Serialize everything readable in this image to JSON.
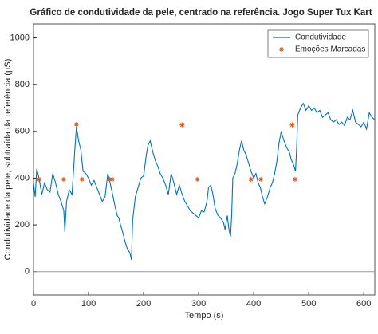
{
  "chart_data": {
    "type": "line",
    "title": "Gráfico de condutividade da pele, centrado na referência. Jogo Super Tux Kart",
    "x_label": "Tempo (s)",
    "y_label": "Condutividade da pele, subtraída da referência (µS)",
    "xlim": [
      0,
      620
    ],
    "xticks": [
      0,
      100,
      200,
      300,
      400,
      500,
      600
    ],
    "ylim": [
      -100,
      1060
    ],
    "yticks": [
      0,
      200,
      400,
      600,
      800,
      1000
    ],
    "reference_line": 0,
    "legend": "top-right",
    "series": [
      {
        "name": "Condutividade",
        "color": "#0072bd",
        "type": "line",
        "x": [
          0,
          3,
          6,
          10,
          15,
          20,
          25,
          30,
          35,
          40,
          45,
          50,
          55,
          57,
          60,
          65,
          70,
          75,
          78,
          82,
          86,
          90,
          95,
          100,
          105,
          110,
          115,
          120,
          125,
          130,
          135,
          138,
          142,
          148,
          152,
          155,
          158,
          162,
          166,
          170,
          175,
          178,
          180,
          185,
          190,
          195,
          200,
          205,
          208,
          212,
          218,
          222,
          226,
          230,
          235,
          240,
          245,
          250,
          255,
          260,
          265,
          270,
          275,
          280,
          285,
          290,
          295,
          300,
          305,
          310,
          315,
          318,
          322,
          326,
          330,
          335,
          340,
          345,
          348,
          352,
          355,
          358,
          360,
          362,
          366,
          370,
          374,
          378,
          382,
          386,
          390,
          395,
          400,
          404,
          408,
          412,
          416,
          420,
          425,
          430,
          434,
          438,
          442,
          446,
          450,
          455,
          460,
          465,
          468,
          472,
          476,
          478,
          480,
          485,
          490,
          495,
          500,
          505,
          510,
          515,
          520,
          525,
          530,
          535,
          540,
          545,
          550,
          555,
          560,
          565,
          570,
          575,
          580,
          585,
          590,
          595,
          600,
          605,
          610,
          615,
          620
        ],
        "values": [
          380,
          320,
          440,
          400,
          330,
          380,
          350,
          340,
          420,
          380,
          330,
          300,
          260,
          170,
          300,
          350,
          330,
          520,
          620,
          560,
          520,
          430,
          420,
          400,
          370,
          390,
          360,
          330,
          300,
          320,
          420,
          390,
          350,
          280,
          240,
          230,
          200,
          170,
          130,
          100,
          80,
          50,
          220,
          320,
          360,
          400,
          410,
          500,
          540,
          560,
          500,
          470,
          450,
          420,
          400,
          370,
          330,
          420,
          380,
          330,
          370,
          330,
          300,
          280,
          260,
          250,
          240,
          230,
          260,
          255,
          300,
          360,
          370,
          330,
          270,
          240,
          230,
          210,
          180,
          240,
          180,
          150,
          240,
          400,
          420,
          460,
          520,
          560,
          520,
          500,
          470,
          430,
          400,
          420,
          380,
          360,
          320,
          290,
          320,
          360,
          380,
          420,
          470,
          550,
          600,
          560,
          530,
          510,
          480,
          460,
          430,
          530,
          670,
          700,
          720,
          690,
          710,
          690,
          700,
          680,
          690,
          660,
          670,
          680,
          650,
          640,
          650,
          630,
          640,
          625,
          660,
          650,
          690,
          640,
          630,
          620,
          640,
          610,
          680,
          660,
          650
        ]
      },
      {
        "name": "Emoções Marcadas",
        "color": "#d95319",
        "type": "scatter",
        "x": [
          10,
          55,
          78,
          88,
          138,
          143,
          270,
          298,
          395,
          413,
          470,
          475
        ],
        "values": [
          395,
          395,
          630,
          395,
          395,
          395,
          628,
          395,
          395,
          395,
          628,
          395
        ]
      }
    ]
  }
}
